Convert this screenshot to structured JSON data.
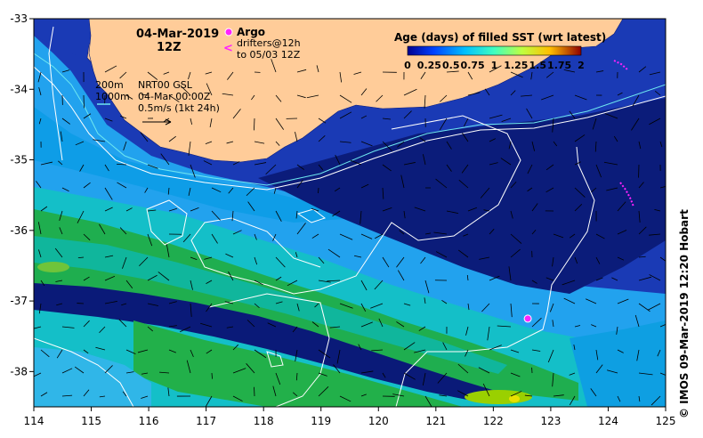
{
  "map": {
    "date_label": "04-Mar-2019",
    "time_label": "12Z",
    "legend_argo": "Argo",
    "legend_drifters_line1": "drifters@12h",
    "legend_drifters_line2": "to 05/03 12Z",
    "contour_200": "200m",
    "contour_1000": "1000m",
    "current_source": "NRT00 GSL",
    "current_time": "04-Mar 00:00Z",
    "vector_scale": "0.5m/s (1kt 24h)",
    "colorbar_title": "Age (days) of filled SST (wrt latest)",
    "colorbar_ticks": [
      "0",
      "0.25",
      "0.5",
      "0.75",
      "1",
      "1.25",
      "1.5",
      "1.75",
      "2"
    ],
    "colorbar_range": [
      0,
      2
    ],
    "credit": "© IMOS 09-Mar-2019 12:20 Hobart",
    "extent": {
      "lon": [
        114,
        125
      ],
      "lat": [
        -38.5,
        -33
      ]
    },
    "x_ticks": [
      "114",
      "115",
      "116",
      "117",
      "118",
      "119",
      "120",
      "121",
      "122",
      "123",
      "124",
      "125"
    ],
    "y_ticks": [
      "-33",
      "-34",
      "-35",
      "-36",
      "-37",
      "-38"
    ],
    "argo_floats": [
      {
        "lon": 122.6,
        "lat": -37.25
      }
    ],
    "colors": {
      "land": "#ffcc99",
      "ocean_base": "#1a3ab5",
      "deep_navy": "#0a1a78",
      "light_blue": "#2aa6f0",
      "sky": "#0ea0e8",
      "cyan": "#12c0d8",
      "teal": "#10b89a",
      "green": "#22b04a",
      "lime": "#9ad000",
      "argo": "#ff22ff",
      "contour": "#ffffff",
      "coast_contour": "#6ee8f0"
    }
  }
}
